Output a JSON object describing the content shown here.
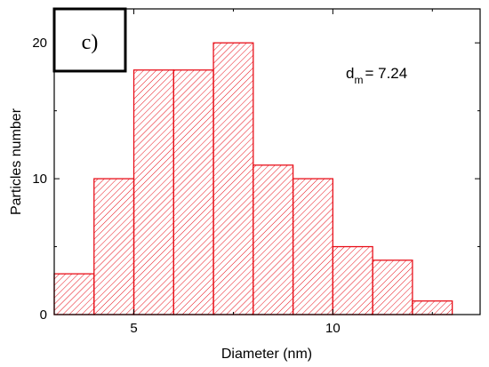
{
  "chart_data": {
    "type": "bar",
    "subtype": "histogram",
    "bin_edges": [
      3,
      4,
      5,
      6,
      7,
      8,
      9,
      10,
      11,
      12,
      13
    ],
    "values": [
      3,
      10,
      18,
      18,
      20,
      11,
      10,
      5,
      4,
      1
    ],
    "xlim": [
      3,
      13.7
    ],
    "ylim": [
      0,
      22.5
    ],
    "x_ticks": [
      5,
      10
    ],
    "x_tick_labels": [
      "5",
      "10"
    ],
    "y_ticks": [
      0,
      10,
      20
    ],
    "y_tick_labels": [
      "0",
      "10",
      "20"
    ],
    "xlabel": "Diameter (nm)",
    "ylabel": "Particles number",
    "panel_label": "c)",
    "annotation": {
      "main": "d",
      "subscript": "m",
      "rest": "= 7.24"
    },
    "bar_edge_color": "#e8101a",
    "bar_hatch": "diagonal",
    "grid": false
  }
}
